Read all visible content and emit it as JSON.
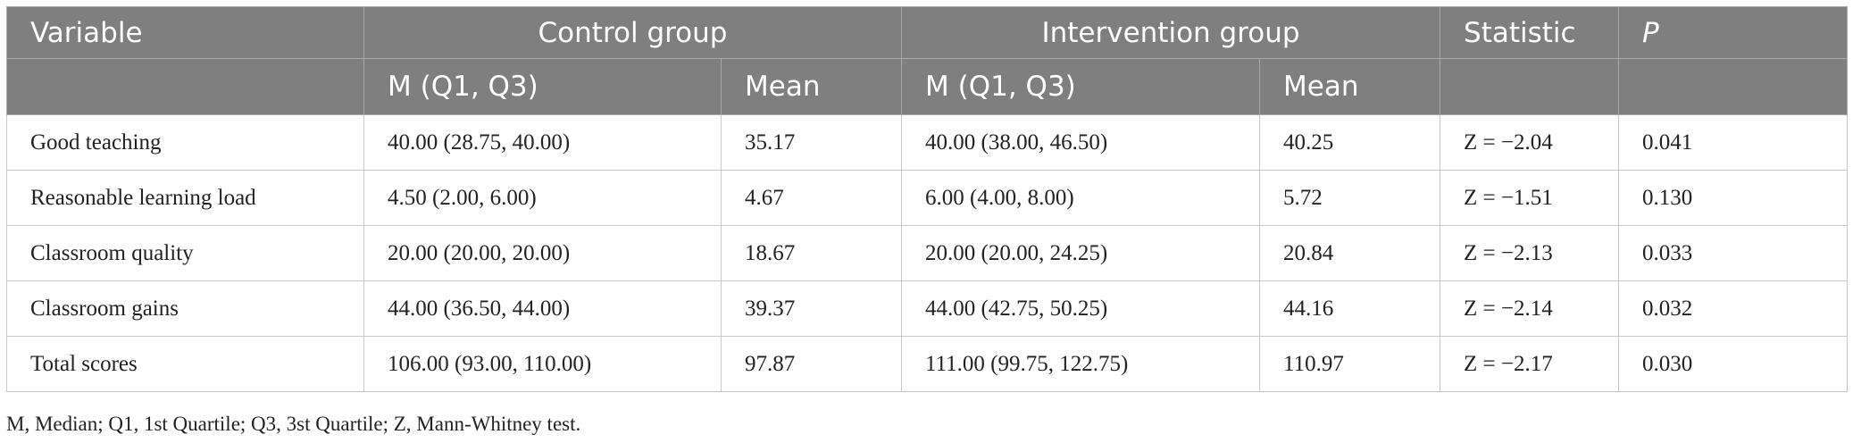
{
  "table": {
    "header": {
      "row1": [
        "Variable",
        "Control group",
        "Intervention group",
        "Statistic",
        "P"
      ],
      "row2": [
        "M (Q1, Q3)",
        "Mean",
        "M (Q1, Q3)",
        "Mean"
      ]
    },
    "rows": [
      [
        "Good teaching",
        "40.00 (28.75, 40.00)",
        "35.17",
        "40.00 (38.00, 46.50)",
        "40.25",
        "Z = −2.04",
        "0.041"
      ],
      [
        "Reasonable learning load",
        "4.50 (2.00, 6.00)",
        "4.67",
        "6.00 (4.00, 8.00)",
        "5.72",
        "Z = −1.51",
        "0.130"
      ],
      [
        "Classroom quality",
        "20.00 (20.00, 20.00)",
        "18.67",
        "20.00 (20.00, 24.25)",
        "20.84",
        "Z = −2.13",
        "0.033"
      ],
      [
        "Classroom gains",
        "44.00 (36.50, 44.00)",
        "39.37",
        "44.00 (42.75, 50.25)",
        "44.16",
        "Z = −2.14",
        "0.032"
      ],
      [
        "Total scores",
        "106.00 (93.00, 110.00)",
        "97.87",
        "111.00 (99.75, 122.75)",
        "110.97",
        "Z = −2.17",
        "0.030"
      ]
    ],
    "footnote": "M, Median; Q1, 1st Quartile; Q3, 3st Quartile; Z, Mann-Whitney test."
  }
}
